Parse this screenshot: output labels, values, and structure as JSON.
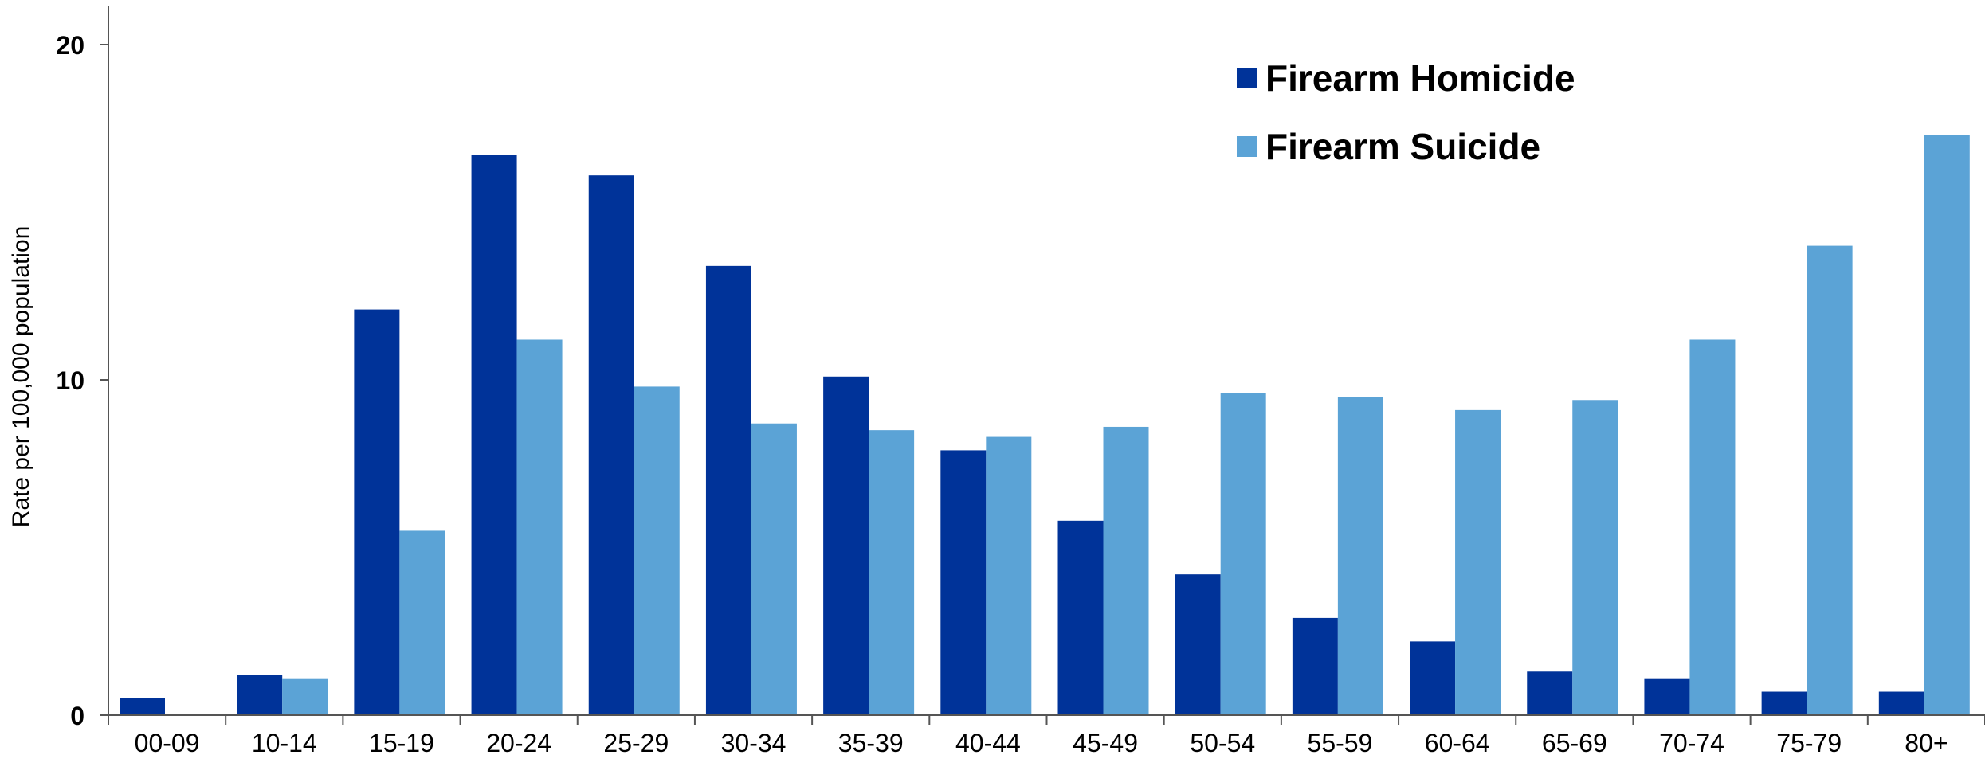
{
  "chart_data": {
    "type": "bar",
    "ylabel": "Rate per 100,000 population",
    "xlabel": "",
    "ylim": [
      0,
      21
    ],
    "yticks": [
      0,
      10,
      20
    ],
    "grid": false,
    "legend_position": "top-right",
    "categories": [
      "00-09",
      "10-14",
      "15-19",
      "20-24",
      "25-29",
      "30-34",
      "35-39",
      "40-44",
      "45-49",
      "50-54",
      "55-59",
      "60-64",
      "65-69",
      "70-74",
      "75-79",
      "80+"
    ],
    "series": [
      {
        "name": "Firearm Homicide",
        "color": "#003399",
        "values": [
          0.5,
          1.2,
          12.1,
          16.7,
          16.1,
          13.4,
          10.1,
          7.9,
          5.8,
          4.2,
          2.9,
          2.2,
          1.3,
          1.1,
          0.7,
          0.7
        ]
      },
      {
        "name": "Firearm Suicide",
        "color": "#5ba3d6",
        "values": [
          0.0,
          1.1,
          5.5,
          11.2,
          9.8,
          8.7,
          8.5,
          8.3,
          8.6,
          9.6,
          9.5,
          9.1,
          9.4,
          11.2,
          14.0,
          17.3
        ]
      }
    ]
  }
}
